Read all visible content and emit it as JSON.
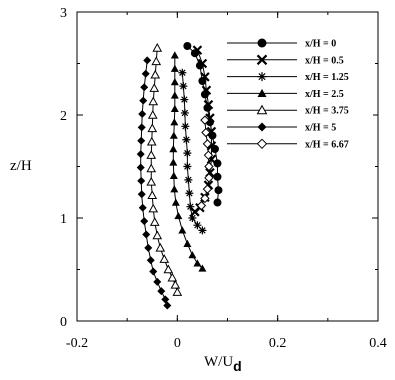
{
  "chart_data": {
    "type": "line",
    "title": "",
    "xlabel": {
      "main": "W/U",
      "sub": "d"
    },
    "ylabel": "z/H",
    "xlim": [
      -0.2,
      0.4
    ],
    "ylim": [
      0,
      3
    ],
    "x_ticks": [
      "-0.2",
      "0",
      "0.2",
      "0.4"
    ],
    "y_ticks": [
      "0",
      "1",
      "2",
      "3"
    ],
    "grid": false,
    "legend_position": "top-right",
    "series": [
      {
        "name": "x/H = 0",
        "marker": "circle-filled",
        "points": [
          [
            0.02,
            2.67
          ],
          [
            0.035,
            2.6
          ],
          [
            0.045,
            2.48
          ],
          [
            0.05,
            2.33
          ],
          [
            0.055,
            2.2
          ],
          [
            0.06,
            2.07
          ],
          [
            0.065,
            1.93
          ],
          [
            0.07,
            1.8
          ],
          [
            0.075,
            1.67
          ],
          [
            0.08,
            1.53
          ],
          [
            0.08,
            1.4
          ],
          [
            0.082,
            1.27
          ],
          [
            0.08,
            1.15
          ]
        ]
      },
      {
        "name": "x/H = 0.5",
        "marker": "cross",
        "points": [
          [
            0.04,
            2.63
          ],
          [
            0.05,
            2.5
          ],
          [
            0.055,
            2.37
          ],
          [
            0.058,
            2.24
          ],
          [
            0.062,
            2.1
          ],
          [
            0.065,
            1.97
          ],
          [
            0.068,
            1.84
          ],
          [
            0.068,
            1.7
          ],
          [
            0.068,
            1.57
          ],
          [
            0.065,
            1.44
          ],
          [
            0.062,
            1.32
          ],
          [
            0.055,
            1.2
          ],
          [
            0.045,
            1.1
          ],
          [
            0.035,
            1.06
          ]
        ]
      },
      {
        "name": "x/H = 1.25",
        "marker": "asterisk",
        "points": [
          [
            0.01,
            2.41
          ],
          [
            0.012,
            2.28
          ],
          [
            0.014,
            2.15
          ],
          [
            0.015,
            2.02
          ],
          [
            0.016,
            1.89
          ],
          [
            0.018,
            1.76
          ],
          [
            0.02,
            1.63
          ],
          [
            0.02,
            1.5
          ],
          [
            0.022,
            1.37
          ],
          [
            0.024,
            1.24
          ],
          [
            0.026,
            1.11
          ],
          [
            0.03,
            1.0
          ],
          [
            0.04,
            0.93
          ],
          [
            0.05,
            0.88
          ]
        ]
      },
      {
        "name": "x/H = 2.5",
        "marker": "triangle-filled",
        "points": [
          [
            -0.005,
            2.58
          ],
          [
            -0.005,
            2.45
          ],
          [
            -0.005,
            2.32
          ],
          [
            -0.005,
            2.19
          ],
          [
            -0.005,
            2.06
          ],
          [
            -0.006,
            1.93
          ],
          [
            -0.007,
            1.8
          ],
          [
            -0.008,
            1.67
          ],
          [
            -0.008,
            1.54
          ],
          [
            -0.007,
            1.41
          ],
          [
            -0.006,
            1.28
          ],
          [
            -0.003,
            1.15
          ],
          [
            0.002,
            1.02
          ],
          [
            0.01,
            0.88
          ],
          [
            0.02,
            0.75
          ],
          [
            0.03,
            0.64
          ],
          [
            0.04,
            0.56
          ],
          [
            0.05,
            0.51
          ]
        ]
      },
      {
        "name": "x/H = 3.75",
        "marker": "triangle-open",
        "points": [
          [
            -0.04,
            2.65
          ],
          [
            -0.042,
            2.52
          ],
          [
            -0.044,
            2.39
          ],
          [
            -0.046,
            2.26
          ],
          [
            -0.048,
            2.13
          ],
          [
            -0.049,
            2.0
          ],
          [
            -0.05,
            1.87
          ],
          [
            -0.051,
            1.74
          ],
          [
            -0.052,
            1.61
          ],
          [
            -0.052,
            1.48
          ],
          [
            -0.052,
            1.35
          ],
          [
            -0.05,
            1.22
          ],
          [
            -0.048,
            1.09
          ],
          [
            -0.045,
            0.96
          ],
          [
            -0.04,
            0.83
          ],
          [
            -0.034,
            0.71
          ],
          [
            -0.026,
            0.6
          ],
          [
            -0.018,
            0.5
          ],
          [
            -0.01,
            0.42
          ],
          [
            -0.004,
            0.35
          ],
          [
            0.0,
            0.28
          ]
        ]
      },
      {
        "name": "x/H = 5",
        "marker": "diamond-filled",
        "points": [
          [
            -0.06,
            2.53
          ],
          [
            -0.063,
            2.4
          ],
          [
            -0.066,
            2.27
          ],
          [
            -0.068,
            2.14
          ],
          [
            -0.07,
            2.01
          ],
          [
            -0.071,
            1.88
          ],
          [
            -0.072,
            1.75
          ],
          [
            -0.073,
            1.62
          ],
          [
            -0.073,
            1.49
          ],
          [
            -0.072,
            1.36
          ],
          [
            -0.071,
            1.23
          ],
          [
            -0.069,
            1.1
          ],
          [
            -0.066,
            0.97
          ],
          [
            -0.062,
            0.84
          ],
          [
            -0.058,
            0.71
          ],
          [
            -0.053,
            0.59
          ],
          [
            -0.048,
            0.48
          ],
          [
            -0.04,
            0.38
          ],
          [
            -0.032,
            0.29
          ],
          [
            -0.024,
            0.21
          ],
          [
            -0.02,
            0.15
          ]
        ]
      },
      {
        "name": "x/H = 6.67",
        "marker": "diamond-open",
        "points": [
          [
            0.055,
            1.95
          ],
          [
            0.057,
            1.83
          ],
          [
            0.06,
            1.72
          ],
          [
            0.062,
            1.61
          ],
          [
            0.063,
            1.5
          ],
          [
            0.063,
            1.39
          ],
          [
            0.06,
            1.28
          ],
          [
            0.055,
            1.19
          ],
          [
            0.048,
            1.12
          ]
        ]
      }
    ]
  }
}
